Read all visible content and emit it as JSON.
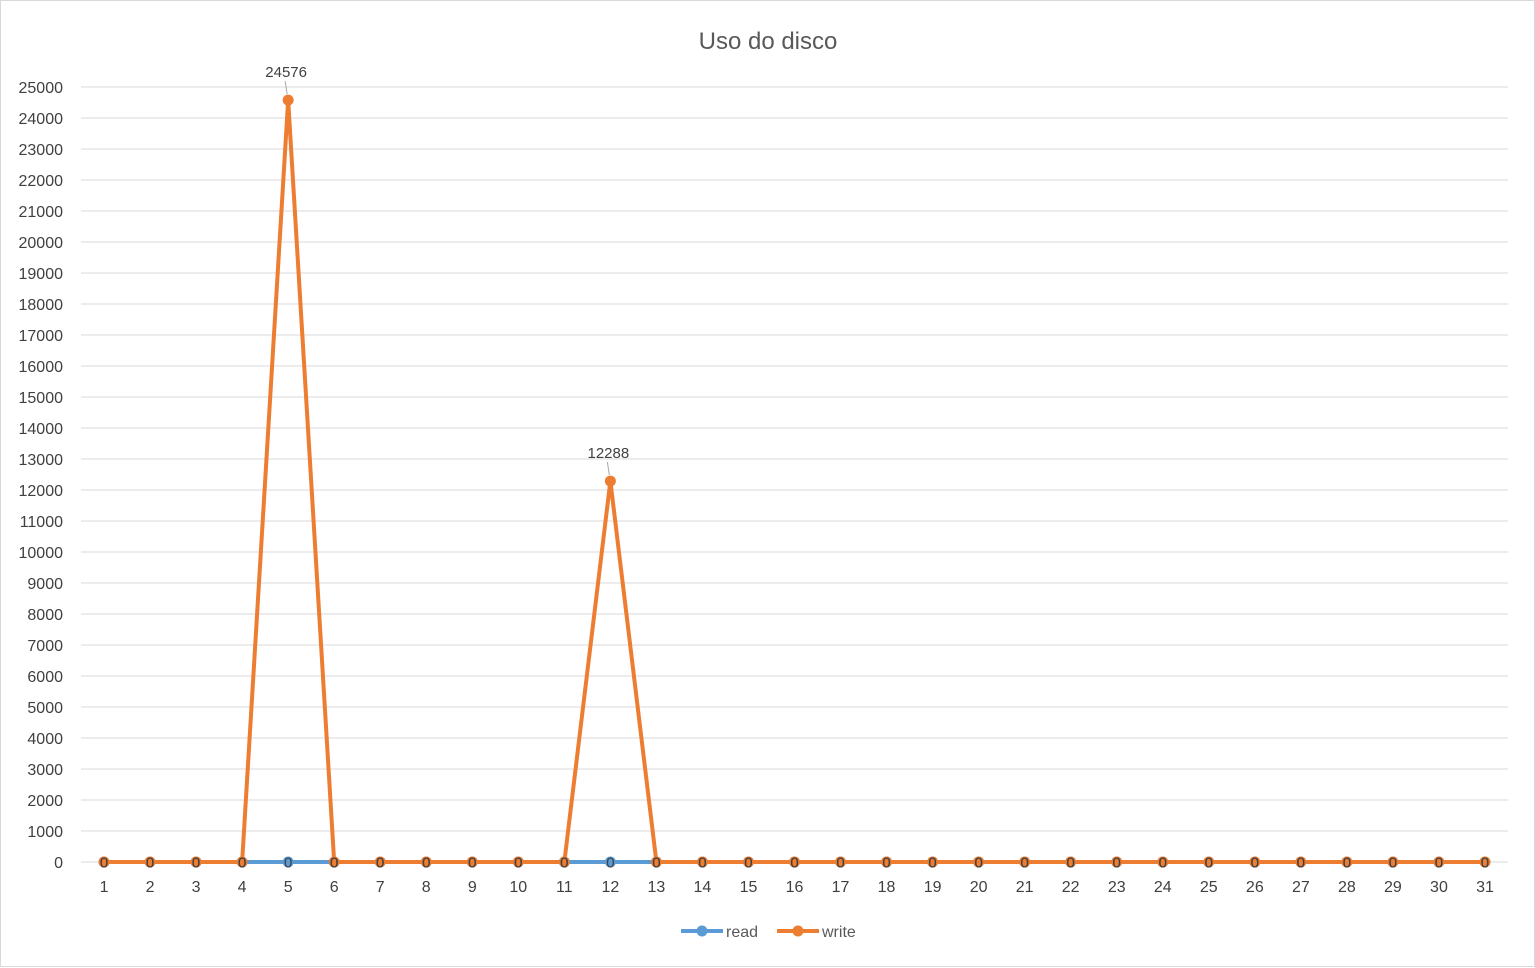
{
  "chart_data": {
    "type": "line",
    "title": "Uso do disco",
    "xlabel": "",
    "ylabel": "",
    "categories": [
      "1",
      "2",
      "3",
      "4",
      "5",
      "6",
      "7",
      "8",
      "9",
      "10",
      "11",
      "12",
      "13",
      "14",
      "15",
      "16",
      "17",
      "18",
      "19",
      "20",
      "21",
      "22",
      "23",
      "24",
      "25",
      "26",
      "27",
      "28",
      "29",
      "30",
      "31"
    ],
    "series": [
      {
        "name": "read",
        "color": "#5b9bd5",
        "values": [
          0,
          0,
          0,
          0,
          0,
          0,
          0,
          0,
          0,
          0,
          0,
          0,
          0,
          0,
          0,
          0,
          0,
          0,
          0,
          0,
          0,
          0,
          0,
          0,
          0,
          0,
          0,
          0,
          0,
          0,
          0
        ]
      },
      {
        "name": "write",
        "color": "#ed7d31",
        "values": [
          0,
          0,
          0,
          0,
          24576,
          0,
          0,
          0,
          0,
          0,
          0,
          12288,
          0,
          0,
          0,
          0,
          0,
          0,
          0,
          0,
          0,
          0,
          0,
          0,
          0,
          0,
          0,
          0,
          0,
          0,
          0
        ]
      }
    ],
    "ylim": [
      0,
      25000
    ],
    "ytick_step": 1000,
    "grid": true,
    "legend_position": "bottom",
    "data_labels": true
  }
}
